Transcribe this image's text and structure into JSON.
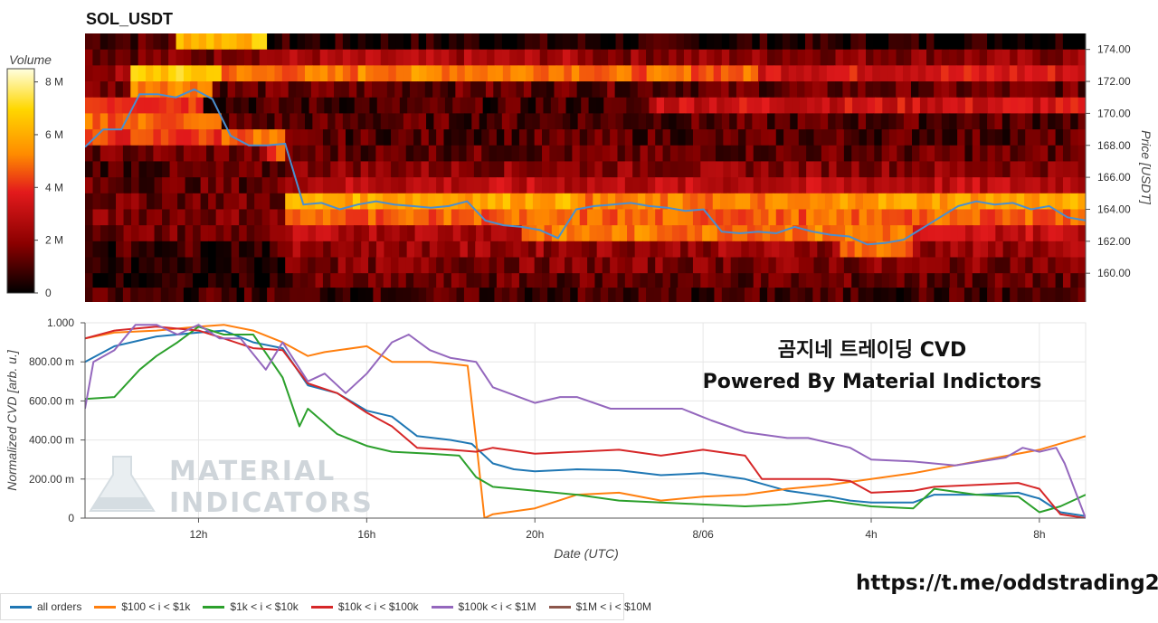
{
  "header": {
    "title": "SOL_USDT"
  },
  "colorbar": {
    "label": "Volume",
    "ticks": [
      "0",
      "2 M",
      "4 M",
      "6 M",
      "8 M"
    ],
    "tick_values": [
      0,
      2,
      4,
      6,
      8
    ]
  },
  "overlay": {
    "title_line1": "곰지네 트레이딩 CVD",
    "title_line2": "Powered By Material Indictors",
    "watermark_line1": "MATERIAL",
    "watermark_line2": "INDICATORS"
  },
  "footer": {
    "url": "https://t.me/oddstrading2"
  },
  "chart_data": [
    {
      "type": "heatmap",
      "title": "SOL_USDT",
      "ylabel": "Price [USDT]",
      "ylim": [
        158.2,
        175.0
      ],
      "y_ticks": [
        "160.00",
        "162.00",
        "164.00",
        "166.00",
        "168.00",
        "170.00",
        "172.00",
        "174.00"
      ],
      "y_tick_values": [
        160,
        162,
        164,
        166,
        168,
        170,
        172,
        174
      ],
      "colorscale": [
        "#000000",
        "#8b0000",
        "#e31a1c",
        "#ff8c00",
        "#ffd700",
        "#ffffe0"
      ],
      "volume_range_M": [
        0,
        8.5
      ],
      "bands": [
        {
          "price": 174.5,
          "segments": [
            [
              0,
              1,
              1.0
            ],
            [
              1,
              2,
              6.2
            ],
            [
              2,
              11,
              0.4
            ]
          ]
        },
        {
          "price": 173.5,
          "segments": [
            [
              0,
              1.5,
              1.5
            ],
            [
              1.5,
              2,
              2.0
            ],
            [
              2,
              5.5,
              2.2
            ],
            [
              5.5,
              11,
              1.8
            ]
          ]
        },
        {
          "price": 172.5,
          "segments": [
            [
              0,
              0.5,
              2.0
            ],
            [
              0.5,
              1.5,
              6.5
            ],
            [
              1.5,
              3.0,
              4.6
            ],
            [
              3.0,
              5.6,
              5.0
            ],
            [
              5.6,
              7.4,
              4.4
            ],
            [
              7.4,
              11,
              3.2
            ]
          ]
        },
        {
          "price": 171.5,
          "segments": [
            [
              0,
              0.5,
              1.5
            ],
            [
              0.5,
              1.4,
              5.2
            ],
            [
              1.4,
              11,
              1.2
            ]
          ]
        },
        {
          "price": 170.5,
          "segments": [
            [
              0,
              1.3,
              4.0
            ],
            [
              1.3,
              6.2,
              0.8
            ],
            [
              6.2,
              11,
              3.0
            ]
          ]
        },
        {
          "price": 169.5,
          "segments": [
            [
              0,
              1.5,
              4.5
            ],
            [
              1.5,
              11,
              1.0
            ]
          ]
        },
        {
          "price": 168.5,
          "segments": [
            [
              0,
              1.5,
              3.8
            ],
            [
              1.5,
              2.2,
              4.6
            ],
            [
              2.2,
              11,
              1.0
            ]
          ]
        },
        {
          "price": 167.5,
          "segments": [
            [
              0,
              2.0,
              1.4
            ],
            [
              2.0,
              2.2,
              4.0
            ],
            [
              2.2,
              11,
              1.2
            ]
          ]
        },
        {
          "price": 166.5,
          "segments": [
            [
              0,
              2.2,
              1.0
            ],
            [
              2.2,
              11,
              1.8
            ]
          ]
        },
        {
          "price": 165.5,
          "segments": [
            [
              0,
              2.2,
              1.2
            ],
            [
              2.2,
              11,
              2.6
            ]
          ]
        },
        {
          "price": 164.5,
          "segments": [
            [
              0,
              2.2,
              1.4
            ],
            [
              2.2,
              5.5,
              5.8
            ],
            [
              5.5,
              8.3,
              4.8
            ],
            [
              8.3,
              11,
              5.6
            ]
          ]
        },
        {
          "price": 163.5,
          "segments": [
            [
              0,
              2.2,
              1.6
            ],
            [
              2.2,
              11,
              4.4
            ]
          ]
        },
        {
          "price": 162.5,
          "segments": [
            [
              0,
              2.2,
              1.4
            ],
            [
              2.2,
              4.8,
              2.4
            ],
            [
              4.8,
              9.1,
              4.8
            ],
            [
              9.1,
              11,
              2.8
            ]
          ]
        },
        {
          "price": 161.5,
          "segments": [
            [
              0,
              2.2,
              0.8
            ],
            [
              2.2,
              8.3,
              2.0
            ],
            [
              8.3,
              9.1,
              4.6
            ],
            [
              9.1,
              11,
              2.0
            ]
          ]
        },
        {
          "price": 160.5,
          "segments": [
            [
              0,
              2.2,
              0.4
            ],
            [
              2.2,
              11,
              1.6
            ]
          ]
        },
        {
          "price": 159.5,
          "segments": [
            [
              0,
              2.2,
              0.3
            ],
            [
              2.2,
              11,
              1.2
            ]
          ]
        },
        {
          "price": 158.6,
          "segments": [
            [
              0,
              11,
              0.8
            ]
          ]
        }
      ],
      "price_line": {
        "x": [
          0,
          0.2,
          0.4,
          0.6,
          0.8,
          1.0,
          1.2,
          1.4,
          1.6,
          1.8,
          2.0,
          2.2,
          2.4,
          2.6,
          2.8,
          3.0,
          3.2,
          3.4,
          3.6,
          3.8,
          4.0,
          4.2,
          4.4,
          4.6,
          4.8,
          5.0,
          5.2,
          5.4,
          5.6,
          5.8,
          6.0,
          6.2,
          6.4,
          6.6,
          6.8,
          7.0,
          7.2,
          7.4,
          7.6,
          7.8,
          8.0,
          8.2,
          8.4,
          8.6,
          8.8,
          9.0,
          9.2,
          9.4,
          9.6,
          9.8,
          10.0,
          10.2,
          10.4,
          10.6,
          10.8,
          11.0
        ],
        "y": [
          167.9,
          169.0,
          169.0,
          171.2,
          171.2,
          171.0,
          171.5,
          170.9,
          168.6,
          168.0,
          168.0,
          168.1,
          164.3,
          164.4,
          164.0,
          164.3,
          164.5,
          164.3,
          164.2,
          164.1,
          164.2,
          164.5,
          163.3,
          163.0,
          162.9,
          162.7,
          162.2,
          164.0,
          164.2,
          164.3,
          164.4,
          164.2,
          164.1,
          163.9,
          164.0,
          162.6,
          162.5,
          162.6,
          162.5,
          162.9,
          162.6,
          162.4,
          162.3,
          161.8,
          161.9,
          162.1,
          162.8,
          163.5,
          164.2,
          164.5,
          164.3,
          164.4,
          164.0,
          164.2,
          163.5,
          163.3
        ]
      }
    },
    {
      "type": "line",
      "xlabel": "Date (UTC)",
      "ylabel": "Normalized CVD [arb. u.]",
      "ylim": [
        0,
        1000
      ],
      "y_ticks": [
        "0",
        "200.00 m",
        "400.00 m",
        "600.00 m",
        "800.00 m",
        "1.000"
      ],
      "y_tick_values": [
        0,
        200,
        400,
        600,
        800,
        1000
      ],
      "x_ticks": [
        "12h",
        "16h",
        "20h",
        "8/06",
        "4h",
        "8h"
      ],
      "x_tick_values": [
        12,
        16,
        20,
        24,
        28,
        32
      ],
      "xlim": [
        9.3,
        33.1
      ],
      "grid": true,
      "series": [
        {
          "name": "all orders",
          "color": "#1f77b4",
          "x": [
            9.3,
            10.0,
            11.0,
            12.0,
            12.6,
            13.3,
            14.0,
            14.6,
            15.3,
            16.0,
            16.6,
            17.2,
            18.0,
            18.5,
            19.0,
            19.5,
            20.0,
            21.0,
            22.0,
            23.0,
            24.0,
            25.0,
            25.5,
            26.0,
            27.0,
            27.5,
            28.0,
            29.0,
            29.5,
            30.5,
            31.5,
            32.0,
            32.5,
            33.1
          ],
          "y": [
            800,
            880,
            930,
            950,
            960,
            900,
            870,
            680,
            640,
            550,
            520,
            420,
            400,
            380,
            280,
            250,
            240,
            250,
            245,
            220,
            230,
            200,
            170,
            140,
            110,
            90,
            80,
            80,
            120,
            120,
            130,
            100,
            30,
            10
          ]
        },
        {
          "name": "$100 < i < $1k",
          "color": "#ff7f0e",
          "x": [
            9.3,
            10.0,
            11.0,
            12.0,
            12.6,
            13.3,
            14.0,
            14.6,
            15.0,
            16.0,
            16.6,
            17.5,
            18.0,
            18.4,
            18.6,
            18.8,
            19.0,
            20.0,
            21.0,
            22.0,
            23.0,
            24.0,
            25.0,
            26.0,
            27.0,
            28.0,
            29.0,
            30.0,
            31.0,
            32.0,
            33.1
          ],
          "y": [
            920,
            950,
            960,
            980,
            990,
            960,
            900,
            830,
            850,
            880,
            800,
            800,
            790,
            780,
            400,
            0,
            20,
            50,
            120,
            130,
            90,
            110,
            120,
            150,
            170,
            200,
            230,
            270,
            310,
            350,
            420
          ]
        },
        {
          "name": "$1k < i < $10k",
          "color": "#2ca02c",
          "x": [
            9.3,
            10.0,
            10.6,
            11.0,
            11.5,
            12.0,
            12.6,
            13.3,
            14.0,
            14.4,
            14.6,
            15.3,
            16.0,
            16.6,
            17.5,
            18.2,
            18.6,
            19.0,
            20.0,
            21.0,
            22.0,
            23.0,
            24.0,
            25.0,
            26.0,
            27.0,
            28.0,
            29.0,
            29.5,
            30.5,
            31.5,
            32.0,
            32.5,
            33.1
          ],
          "y": [
            610,
            620,
            760,
            830,
            900,
            980,
            940,
            940,
            720,
            470,
            560,
            430,
            370,
            340,
            330,
            320,
            210,
            160,
            140,
            120,
            90,
            80,
            70,
            60,
            70,
            90,
            60,
            50,
            150,
            120,
            110,
            30,
            60,
            120
          ]
        },
        {
          "name": "$10k < i < $100k",
          "color": "#d62728",
          "x": [
            9.3,
            10.0,
            11.0,
            12.0,
            12.6,
            13.3,
            14.0,
            14.6,
            15.3,
            16.0,
            16.6,
            17.2,
            18.0,
            18.6,
            19.0,
            20.0,
            21.0,
            22.0,
            23.0,
            24.0,
            25.0,
            25.4,
            26.0,
            27.0,
            27.5,
            28.0,
            29.0,
            29.5,
            30.5,
            31.5,
            32.0,
            32.5,
            33.1
          ],
          "y": [
            920,
            960,
            980,
            960,
            920,
            870,
            860,
            690,
            640,
            540,
            470,
            360,
            350,
            340,
            360,
            330,
            340,
            350,
            320,
            350,
            320,
            200,
            200,
            200,
            190,
            130,
            140,
            160,
            170,
            180,
            150,
            20,
            0
          ]
        },
        {
          "name": "$100k < i < $1M",
          "color": "#9467bd",
          "x": [
            9.3,
            9.5,
            10.0,
            10.5,
            11.0,
            11.5,
            12.0,
            12.5,
            13.0,
            13.6,
            14.0,
            14.6,
            15.0,
            15.5,
            16.0,
            16.6,
            17.0,
            17.5,
            18.0,
            18.6,
            19.0,
            20.0,
            20.6,
            21.0,
            21.8,
            22.5,
            23.5,
            24.2,
            25.0,
            26.0,
            26.5,
            27.5,
            28.0,
            29.0,
            30.0,
            30.6,
            31.2,
            31.6,
            32.0,
            32.4,
            32.6,
            33.1
          ],
          "y": [
            560,
            800,
            860,
            990,
            990,
            940,
            990,
            920,
            920,
            760,
            900,
            700,
            740,
            640,
            740,
            900,
            940,
            860,
            820,
            800,
            670,
            590,
            620,
            620,
            560,
            560,
            560,
            500,
            440,
            410,
            410,
            360,
            300,
            290,
            270,
            290,
            310,
            360,
            340,
            360,
            280,
            0
          ]
        },
        {
          "name": "$1M < i < $10M",
          "color": "#8c564b",
          "x": [],
          "y": []
        }
      ]
    }
  ]
}
